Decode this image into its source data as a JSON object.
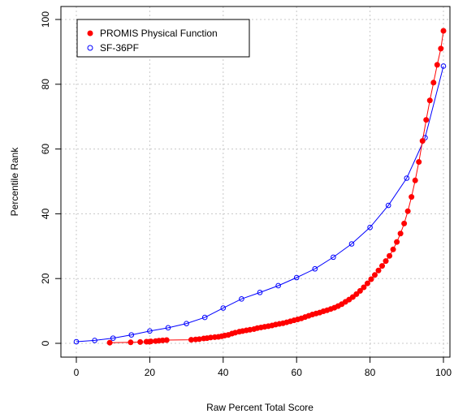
{
  "chart_data": {
    "type": "scatter",
    "title": "",
    "xlabel": "Raw Percent Total Score",
    "ylabel": "Percentile Rank",
    "xlim": [
      0,
      100
    ],
    "ylim": [
      0,
      100
    ],
    "xticks": [
      0,
      20,
      40,
      60,
      80,
      100
    ],
    "yticks": [
      0,
      20,
      40,
      60,
      80,
      100
    ],
    "grid": true,
    "legend": {
      "placement": "top-left"
    },
    "series": [
      {
        "name": "PROMIS Physical Function",
        "color": "#ff0000",
        "marker": "filled-circle",
        "line": true,
        "x": [
          9.1,
          14.8,
          17.4,
          19.1,
          19.9,
          20.3,
          21.6,
          22.5,
          23.5,
          24.6,
          31.3,
          32.5,
          33.5,
          34.7,
          35.6,
          36.6,
          37.7,
          38.7,
          39.6,
          40.4,
          41.4,
          42.4,
          43.3,
          44.4,
          45.3,
          46.3,
          47.3,
          48.4,
          49.3,
          50.3,
          51.3,
          52.3,
          53.3,
          54.3,
          55.3,
          56.3,
          57.3,
          58.3,
          59.3,
          60.3,
          61.3,
          62.3,
          63.3,
          64.3,
          65.3,
          66.3,
          67.3,
          68.3,
          69.3,
          70.3,
          71.3,
          72.3,
          73.3,
          74.3,
          75.3,
          76.3,
          77.3,
          78.3,
          79.3,
          80.3,
          81.3,
          82.3,
          83.3,
          84.3,
          85.3,
          86.3,
          87.3,
          88.3,
          89.3,
          90.3,
          91.3,
          92.3,
          93.3,
          94.3,
          95.3,
          96.3,
          97.3,
          98.3,
          99.3,
          100.0
        ],
        "y": [
          0.2,
          0.3,
          0.4,
          0.5,
          0.5,
          0.6,
          0.7,
          0.8,
          0.9,
          1.0,
          1.1,
          1.2,
          1.3,
          1.5,
          1.6,
          1.8,
          1.9,
          2.0,
          2.2,
          2.4,
          2.6,
          3.0,
          3.3,
          3.6,
          3.8,
          4.0,
          4.2,
          4.4,
          4.7,
          4.9,
          5.1,
          5.3,
          5.5,
          5.8,
          6.0,
          6.2,
          6.5,
          6.8,
          7.1,
          7.4,
          7.7,
          8.1,
          8.5,
          8.9,
          9.2,
          9.5,
          9.9,
          10.2,
          10.6,
          11.0,
          11.5,
          12.1,
          12.8,
          13.5,
          14.3,
          15.2,
          16.2,
          17.3,
          18.5,
          19.8,
          21.1,
          22.5,
          23.9,
          25.4,
          27.0,
          29.0,
          31.3,
          33.9,
          37.0,
          40.8,
          45.2,
          50.3,
          56.0,
          62.5,
          69.0,
          75.0,
          80.5,
          86.0,
          91.0,
          96.5
        ]
      },
      {
        "name": "SF-36PF",
        "color": "#0000ff",
        "marker": "open-circle",
        "line": true,
        "x": [
          0,
          5,
          10,
          15,
          20,
          25,
          30,
          35,
          40,
          45,
          50,
          55,
          60,
          65,
          70,
          75,
          80,
          85,
          90,
          95,
          100
        ],
        "y": [
          0.5,
          0.9,
          1.6,
          2.6,
          3.8,
          4.8,
          6.1,
          8.0,
          10.9,
          13.7,
          15.7,
          17.8,
          20.3,
          23.0,
          26.6,
          30.7,
          35.8,
          42.6,
          51.0,
          63.5,
          85.6
        ]
      }
    ]
  }
}
